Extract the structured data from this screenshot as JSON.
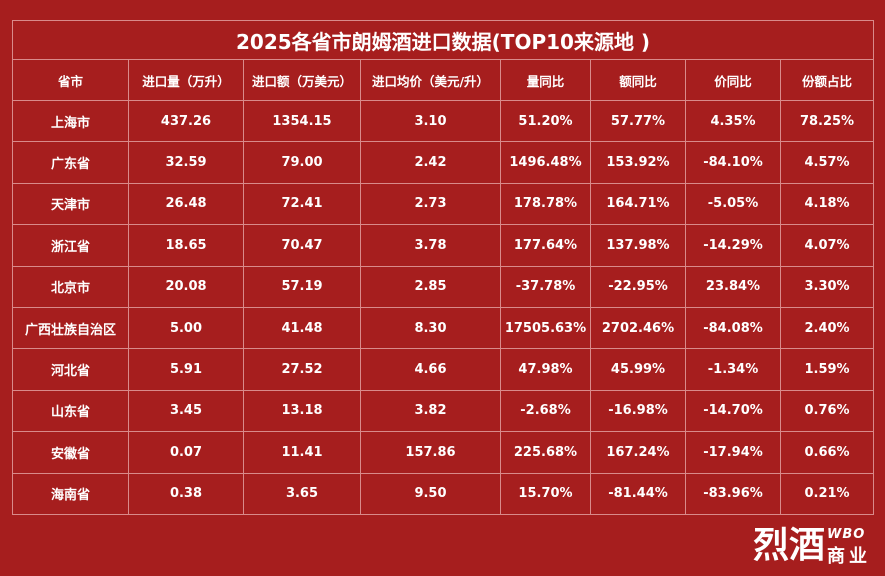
{
  "title": "2025各省市朗姆酒进口数据(TOP10来源地 )",
  "table": {
    "header": [
      "省市",
      "进口量（万升）",
      "进口额（万美元）",
      "进口均价（美元/升）",
      "量同比",
      "额同比",
      "价同比",
      "份额占比"
    ],
    "rows": [
      [
        "上海市",
        "437.26",
        "1354.15",
        "3.10",
        "51.20%",
        "57.77%",
        "4.35%",
        "78.25%"
      ],
      [
        "广东省",
        "32.59",
        "79.00",
        "2.42",
        "1496.48%",
        "153.92%",
        "-84.10%",
        "4.57%"
      ],
      [
        "天津市",
        "26.48",
        "72.41",
        "2.73",
        "178.78%",
        "164.71%",
        "-5.05%",
        "4.18%"
      ],
      [
        "浙江省",
        "18.65",
        "70.47",
        "3.78",
        "177.64%",
        "137.98%",
        "-14.29%",
        "4.07%"
      ],
      [
        "北京市",
        "20.08",
        "57.19",
        "2.85",
        "-37.78%",
        "-22.95%",
        "23.84%",
        "3.30%"
      ],
      [
        "广西壮族自治区",
        "5.00",
        "41.48",
        "8.30",
        "17505.63%",
        "2702.46%",
        "-84.08%",
        "2.40%"
      ],
      [
        "河北省",
        "5.91",
        "27.52",
        "4.66",
        "47.98%",
        "45.99%",
        "-1.34%",
        "1.59%"
      ],
      [
        "山东省",
        "3.45",
        "13.18",
        "3.82",
        "-2.68%",
        "-16.98%",
        "-14.70%",
        "0.76%"
      ],
      [
        "安徽省",
        "0.07",
        "11.41",
        "157.86",
        "225.68%",
        "167.24%",
        "-17.94%",
        "0.66%"
      ],
      [
        "海南省",
        "0.38",
        "3.65",
        "9.50",
        "15.70%",
        "-81.44%",
        "-83.96%",
        "0.21%"
      ]
    ]
  },
  "logo": {
    "main": "烈酒",
    "badge": "WBO",
    "tail": "商业"
  }
}
